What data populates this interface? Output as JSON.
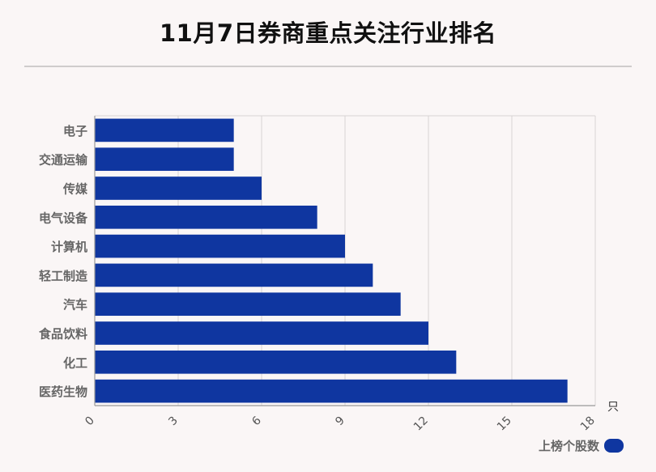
{
  "chart_data": {
    "type": "bar",
    "orientation": "horizontal",
    "title": "11月7日券商重点关注行业排名",
    "categories": [
      "电子",
      "交通运输",
      "传媒",
      "电气设备",
      "计算机",
      "轻工制造",
      "汽车",
      "食品饮料",
      "化工",
      "医药生物"
    ],
    "series": [
      {
        "name": "上榜个股数",
        "values": [
          5,
          5,
          6,
          8,
          9,
          10,
          11,
          12,
          13,
          17
        ],
        "color": "#0f36a0"
      }
    ],
    "xlim": [
      0,
      18
    ],
    "xticks": [
      "0",
      "3",
      "6",
      "9",
      "12",
      "15",
      "18"
    ],
    "xunit": "只",
    "grid": true,
    "legend_position": "bottom-right"
  }
}
